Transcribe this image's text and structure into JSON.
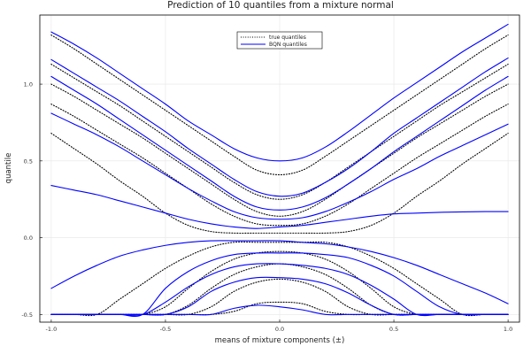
{
  "chart_data": {
    "type": "line",
    "title": "Prediction of 10 quantiles from a mixture normal",
    "xlabel": "means of mixture components (±)",
    "ylabel": "quantile",
    "xlim": [
      -1.05,
      1.05
    ],
    "ylim": [
      -0.55,
      1.45
    ],
    "xticks": [
      -1.0,
      -0.5,
      0.0,
      0.5,
      1.0
    ],
    "xtick_labels": [
      "-1.0",
      "-0.5",
      "0.0",
      "0.5",
      "1.0"
    ],
    "yticks": [
      -0.5,
      0.0,
      0.5,
      1.0
    ],
    "ytick_labels": [
      "-0.5",
      "0.0",
      "0.5",
      "1.0"
    ],
    "grid": true,
    "legend_position": "top-right",
    "legend": [
      {
        "label": "true quantiles",
        "color": "#000000",
        "style": "dotted"
      },
      {
        "label": "BQN quantiles",
        "color": "#0000ff",
        "style": "solid"
      }
    ],
    "x": [
      -1.0,
      -0.9,
      -0.8,
      -0.7,
      -0.6,
      -0.5,
      -0.4,
      -0.3,
      -0.2,
      -0.1,
      0.0,
      0.1,
      0.2,
      0.3,
      0.4,
      0.5,
      0.6,
      0.7,
      0.8,
      0.9,
      1.0
    ],
    "series": [
      {
        "group": "true quantiles",
        "color": "#000000",
        "style": "dotted",
        "values": [
          1.32,
          1.23,
          1.13,
          1.03,
          0.93,
          0.83,
          0.73,
          0.63,
          0.53,
          0.44,
          0.41,
          0.44,
          0.53,
          0.63,
          0.73,
          0.83,
          0.93,
          1.03,
          1.13,
          1.23,
          1.32
        ]
      },
      {
        "group": "true quantiles",
        "color": "#000000",
        "style": "dotted",
        "values": [
          1.13,
          1.04,
          0.95,
          0.86,
          0.76,
          0.66,
          0.56,
          0.46,
          0.36,
          0.28,
          0.25,
          0.28,
          0.36,
          0.46,
          0.56,
          0.66,
          0.76,
          0.86,
          0.95,
          1.04,
          1.13
        ]
      },
      {
        "group": "true quantiles",
        "color": "#000000",
        "style": "dotted",
        "values": [
          1.0,
          0.92,
          0.83,
          0.74,
          0.65,
          0.55,
          0.45,
          0.35,
          0.25,
          0.17,
          0.14,
          0.17,
          0.25,
          0.35,
          0.45,
          0.55,
          0.65,
          0.74,
          0.83,
          0.92,
          1.0
        ]
      },
      {
        "group": "true quantiles",
        "color": "#000000",
        "style": "dotted",
        "values": [
          0.87,
          0.79,
          0.7,
          0.61,
          0.52,
          0.42,
          0.32,
          0.22,
          0.14,
          0.09,
          0.08,
          0.09,
          0.14,
          0.22,
          0.32,
          0.42,
          0.52,
          0.61,
          0.7,
          0.79,
          0.87
        ]
      },
      {
        "group": "true quantiles",
        "color": "#000000",
        "style": "dotted",
        "values": [
          0.68,
          0.58,
          0.48,
          0.37,
          0.27,
          0.16,
          0.08,
          0.04,
          0.03,
          0.03,
          0.03,
          0.03,
          0.03,
          0.04,
          0.08,
          0.16,
          0.27,
          0.37,
          0.48,
          0.58,
          0.68
        ]
      },
      {
        "group": "true quantiles",
        "color": "#000000",
        "style": "dotted",
        "values": [
          -0.5,
          -0.5,
          -0.5,
          -0.4,
          -0.3,
          -0.2,
          -0.12,
          -0.06,
          -0.03,
          -0.03,
          -0.03,
          -0.03,
          -0.03,
          -0.06,
          -0.12,
          -0.2,
          -0.3,
          -0.4,
          -0.5,
          -0.5,
          -0.5
        ]
      },
      {
        "group": "true quantiles",
        "color": "#000000",
        "style": "dotted",
        "values": [
          -0.5,
          -0.5,
          -0.5,
          -0.5,
          -0.5,
          -0.45,
          -0.33,
          -0.22,
          -0.14,
          -0.1,
          -0.09,
          -0.1,
          -0.14,
          -0.22,
          -0.33,
          -0.45,
          -0.5,
          -0.5,
          -0.5,
          -0.5,
          -0.5
        ]
      },
      {
        "group": "true quantiles",
        "color": "#000000",
        "style": "dotted",
        "values": [
          -0.5,
          -0.5,
          -0.5,
          -0.5,
          -0.5,
          -0.5,
          -0.44,
          -0.33,
          -0.24,
          -0.19,
          -0.17,
          -0.19,
          -0.24,
          -0.33,
          -0.44,
          -0.5,
          -0.5,
          -0.5,
          -0.5,
          -0.5,
          -0.5
        ]
      },
      {
        "group": "true quantiles",
        "color": "#000000",
        "style": "dotted",
        "values": [
          -0.5,
          -0.5,
          -0.5,
          -0.5,
          -0.5,
          -0.5,
          -0.5,
          -0.45,
          -0.35,
          -0.29,
          -0.27,
          -0.29,
          -0.35,
          -0.45,
          -0.5,
          -0.5,
          -0.5,
          -0.5,
          -0.5,
          -0.5,
          -0.5
        ]
      },
      {
        "group": "true quantiles",
        "color": "#000000",
        "style": "dotted",
        "values": [
          -0.5,
          -0.5,
          -0.5,
          -0.5,
          -0.5,
          -0.5,
          -0.5,
          -0.5,
          -0.48,
          -0.43,
          -0.42,
          -0.43,
          -0.48,
          -0.5,
          -0.5,
          -0.5,
          -0.5,
          -0.5,
          -0.5,
          -0.5,
          -0.5
        ]
      },
      {
        "group": "BQN quantiles",
        "color": "#0000ff",
        "style": "solid",
        "values": [
          1.34,
          1.26,
          1.17,
          1.07,
          0.97,
          0.87,
          0.76,
          0.67,
          0.58,
          0.52,
          0.5,
          0.52,
          0.59,
          0.69,
          0.8,
          0.91,
          1.01,
          1.11,
          1.21,
          1.3,
          1.39
        ]
      },
      {
        "group": "BQN quantiles",
        "color": "#0000ff",
        "style": "solid",
        "values": [
          1.16,
          1.07,
          0.98,
          0.89,
          0.79,
          0.69,
          0.58,
          0.48,
          0.38,
          0.3,
          0.27,
          0.29,
          0.36,
          0.45,
          0.56,
          0.68,
          0.78,
          0.88,
          0.98,
          1.08,
          1.17
        ]
      },
      {
        "group": "BQN quantiles",
        "color": "#0000ff",
        "style": "solid",
        "values": [
          1.05,
          0.96,
          0.87,
          0.77,
          0.67,
          0.57,
          0.47,
          0.37,
          0.27,
          0.2,
          0.18,
          0.2,
          0.26,
          0.35,
          0.45,
          0.56,
          0.66,
          0.76,
          0.86,
          0.96,
          1.05
        ]
      },
      {
        "group": "BQN quantiles",
        "color": "#0000ff",
        "style": "solid",
        "values": [
          0.81,
          0.74,
          0.67,
          0.59,
          0.5,
          0.41,
          0.32,
          0.24,
          0.17,
          0.13,
          0.12,
          0.13,
          0.17,
          0.23,
          0.3,
          0.38,
          0.45,
          0.53,
          0.6,
          0.67,
          0.74
        ]
      },
      {
        "group": "BQN quantiles",
        "color": "#0000ff",
        "style": "solid",
        "values": [
          0.34,
          0.31,
          0.28,
          0.24,
          0.2,
          0.16,
          0.12,
          0.09,
          0.07,
          0.06,
          0.07,
          0.08,
          0.1,
          0.12,
          0.14,
          0.155,
          0.16,
          0.165,
          0.168,
          0.17,
          0.17
        ]
      },
      {
        "group": "BQN quantiles",
        "color": "#0000ff",
        "style": "solid",
        "values": [
          -0.33,
          -0.25,
          -0.18,
          -0.12,
          -0.08,
          -0.05,
          -0.03,
          -0.02,
          -0.02,
          -0.02,
          -0.02,
          -0.03,
          -0.04,
          -0.06,
          -0.09,
          -0.13,
          -0.18,
          -0.24,
          -0.3,
          -0.36,
          -0.43
        ]
      },
      {
        "group": "BQN quantiles",
        "color": "#0000ff",
        "style": "solid",
        "values": [
          -0.5,
          -0.5,
          -0.5,
          -0.5,
          -0.5,
          -0.33,
          -0.22,
          -0.15,
          -0.11,
          -0.1,
          -0.1,
          -0.1,
          -0.11,
          -0.13,
          -0.18,
          -0.25,
          -0.35,
          -0.45,
          -0.5,
          -0.5,
          -0.5
        ]
      },
      {
        "group": "BQN quantiles",
        "color": "#0000ff",
        "style": "solid",
        "values": [
          -0.5,
          -0.5,
          -0.5,
          -0.5,
          -0.5,
          -0.42,
          -0.32,
          -0.24,
          -0.19,
          -0.17,
          -0.17,
          -0.18,
          -0.2,
          -0.24,
          -0.31,
          -0.4,
          -0.5,
          -0.5,
          -0.5,
          -0.5,
          -0.5
        ]
      },
      {
        "group": "BQN quantiles",
        "color": "#0000ff",
        "style": "solid",
        "values": [
          -0.5,
          -0.5,
          -0.5,
          -0.5,
          -0.5,
          -0.5,
          -0.45,
          -0.35,
          -0.29,
          -0.26,
          -0.26,
          -0.27,
          -0.3,
          -0.36,
          -0.44,
          -0.5,
          -0.5,
          -0.5,
          -0.5,
          -0.5,
          -0.5
        ]
      },
      {
        "group": "BQN quantiles",
        "color": "#0000ff",
        "style": "solid",
        "values": [
          -0.5,
          -0.5,
          -0.5,
          -0.5,
          -0.5,
          -0.5,
          -0.5,
          -0.5,
          -0.46,
          -0.44,
          -0.45,
          -0.47,
          -0.5,
          -0.5,
          -0.5,
          -0.5,
          -0.5,
          -0.5,
          -0.5,
          -0.5,
          -0.5
        ]
      }
    ]
  }
}
